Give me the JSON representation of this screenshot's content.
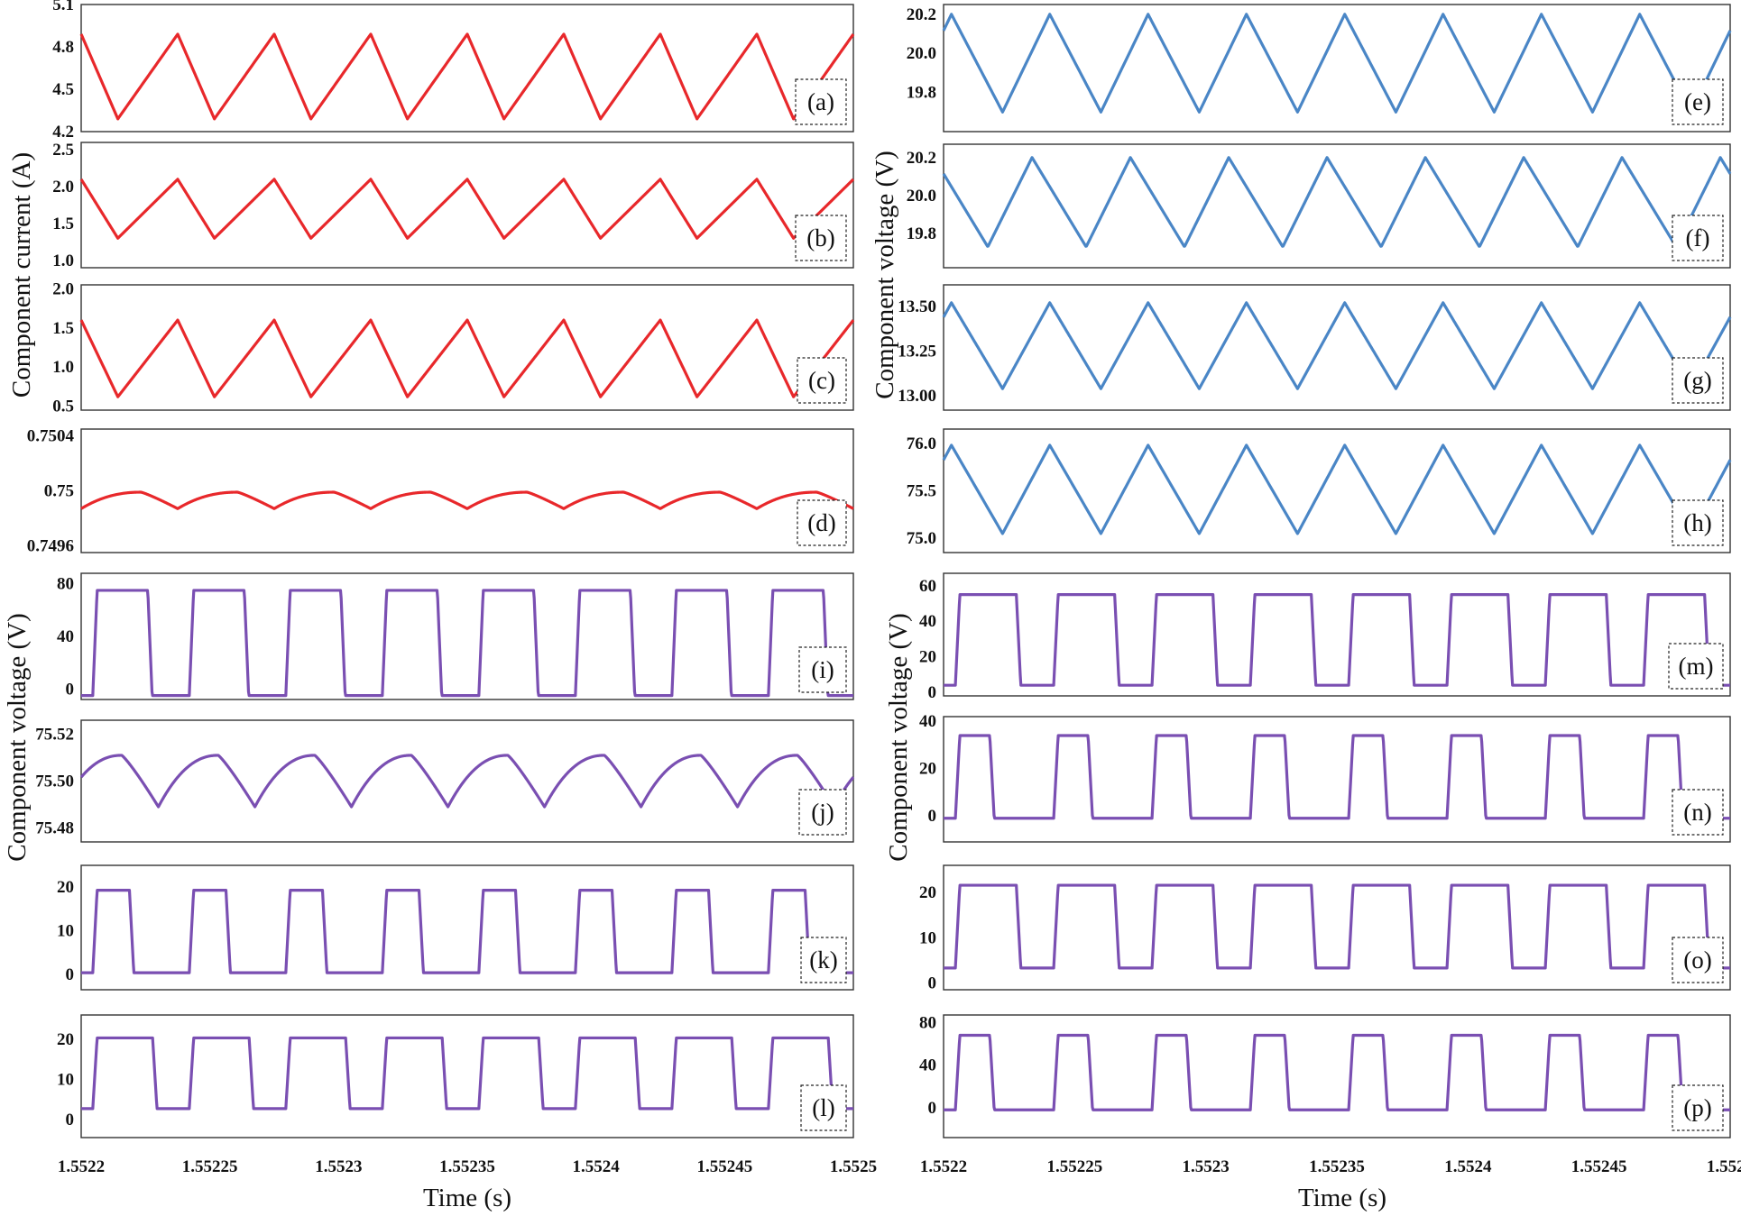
{
  "colors": {
    "current": "#e8282b",
    "voltage_blue": "#4a86c6",
    "voltage_purple": "#7a4fb2"
  },
  "axis_labels": {
    "left_top": "Component current (A)",
    "right_top": "Component voltage (V)",
    "left_bottom": "Component voltage (V)",
    "right_bottom": "Component voltage (V)",
    "x_left": "Time (s)",
    "x_right": "Time (s)"
  },
  "x_axis": {
    "range": [
      1.5522,
      1.5525
    ],
    "ticks": [
      1.5522,
      1.55225,
      1.5523,
      1.55235,
      1.5524,
      1.55245,
      1.5525
    ],
    "tick_labels": [
      "1.5522",
      "1.55225",
      "1.5523",
      "1.55235",
      "1.5524",
      "1.55245",
      "1.5525"
    ]
  },
  "chart_data": [
    {
      "panel": "(a)",
      "type": "line",
      "waveform": "triangle",
      "color": "current",
      "ylabel": "Component current (A)",
      "ylim": [
        4.2,
        5.1
      ],
      "yticks": [
        4.2,
        4.5,
        4.8,
        5.1
      ],
      "ytick_labels": [
        "4.2",
        "4.5",
        "4.8",
        "5.1"
      ],
      "min": 4.29,
      "max": 4.89,
      "start_phase": 0.0,
      "duty": 0.38
    },
    {
      "panel": "(b)",
      "type": "line",
      "waveform": "triangle",
      "color": "current",
      "ylabel": "Component current (A)",
      "ylim": [
        0.9,
        2.6
      ],
      "yticks": [
        1.0,
        1.5,
        2.0,
        2.5
      ],
      "ytick_labels": [
        "1.0",
        "1.5",
        "2.0",
        "2.5"
      ],
      "min": 1.3,
      "max": 2.1,
      "start_phase": 0.0,
      "duty": 0.38
    },
    {
      "panel": "(c)",
      "type": "line",
      "waveform": "triangle",
      "color": "current",
      "ylabel": "Component current (A)",
      "ylim": [
        0.45,
        2.05
      ],
      "yticks": [
        0.5,
        1.0,
        1.5,
        2.0
      ],
      "ytick_labels": [
        "0.5",
        "1.0",
        "1.5",
        "2.0"
      ],
      "min": 0.62,
      "max": 1.6,
      "start_phase": 0.0,
      "duty": 0.38
    },
    {
      "panel": "(d)",
      "type": "line",
      "waveform": "curved_triangle",
      "color": "current",
      "ylabel": "Component current (A)",
      "ylim": [
        0.74955,
        0.75045
      ],
      "yticks": [
        0.7496,
        0.75,
        0.7504
      ],
      "ytick_labels": [
        "0.7496",
        "0.75",
        "0.7504"
      ],
      "min": 0.74987,
      "max": 0.74999,
      "start_phase": 0.0,
      "duty": 0.62
    },
    {
      "panel": "(e)",
      "type": "line",
      "waveform": "triangle",
      "color": "voltage_blue",
      "ylabel": "Component voltage (V)",
      "ylim": [
        19.6,
        20.25
      ],
      "yticks": [
        19.8,
        20.0,
        20.2
      ],
      "ytick_labels": [
        "19.8",
        "20.0",
        "20.2"
      ],
      "min": 19.7,
      "max": 20.2,
      "start_phase": 0.92,
      "duty": 0.52
    },
    {
      "panel": "(f)",
      "type": "line",
      "waveform": "triangle",
      "color": "voltage_blue",
      "ylabel": "Component voltage (V)",
      "ylim": [
        19.62,
        20.27
      ],
      "yticks": [
        19.8,
        20.0,
        20.2
      ],
      "ytick_labels": [
        "19.8",
        "20.0",
        "20.2"
      ],
      "min": 19.73,
      "max": 20.2,
      "start_phase": 0.1,
      "duty": 0.55
    },
    {
      "panel": "(g)",
      "type": "line",
      "waveform": "triangle",
      "color": "voltage_blue",
      "ylabel": "Component voltage (V)",
      "ylim": [
        12.92,
        13.62
      ],
      "yticks": [
        13.0,
        13.25,
        13.5
      ],
      "ytick_labels": [
        "13.00",
        "13.25",
        "13.50"
      ],
      "min": 13.04,
      "max": 13.52,
      "start_phase": 0.92,
      "duty": 0.52
    },
    {
      "panel": "(h)",
      "type": "line",
      "waveform": "triangle",
      "color": "voltage_blue",
      "ylabel": "Component voltage (V)",
      "ylim": [
        74.85,
        76.15
      ],
      "yticks": [
        75.0,
        75.5,
        76.0
      ],
      "ytick_labels": [
        "75.0",
        "75.5",
        "76.0"
      ],
      "min": 75.05,
      "max": 75.98,
      "start_phase": 0.92,
      "duty": 0.52
    },
    {
      "panel": "(i)",
      "type": "line",
      "waveform": "pulse",
      "color": "voltage_purple",
      "ylabel": "Component voltage (V)",
      "ylim": [
        -8,
        88
      ],
      "yticks": [
        0,
        40,
        80
      ],
      "ytick_labels": [
        "0",
        "40",
        "80"
      ],
      "low": -5,
      "high": 75,
      "start_phase": 0.88,
      "duty": 0.57
    },
    {
      "panel": "(j)",
      "type": "line",
      "waveform": "curved_triangle",
      "color": "voltage_purple",
      "ylabel": "Component voltage (V)",
      "ylim": [
        75.474,
        75.526
      ],
      "yticks": [
        75.48,
        75.5,
        75.52
      ],
      "ytick_labels": [
        "75.48",
        "75.50",
        "75.52"
      ],
      "min": 75.489,
      "max": 75.511,
      "start_phase": 0.2,
      "duty": 0.62
    },
    {
      "panel": "(k)",
      "type": "line",
      "waveform": "pulse",
      "color": "voltage_purple",
      "ylabel": "Component voltage (V)",
      "ylim": [
        -3.5,
        25
      ],
      "yticks": [
        0,
        10,
        20
      ],
      "ytick_labels": [
        "0",
        "10",
        "20"
      ],
      "low": 0.4,
      "high": 19.3,
      "start_phase": 0.88,
      "duty": 0.38
    },
    {
      "panel": "(l)",
      "type": "line",
      "waveform": "pulse",
      "color": "voltage_purple",
      "ylabel": "Component voltage (V)",
      "ylim": [
        -4.5,
        26
      ],
      "yticks": [
        0,
        10,
        20
      ],
      "ytick_labels": [
        "0",
        "10",
        "20"
      ],
      "low": 2.7,
      "high": 20.3,
      "start_phase": 0.88,
      "duty": 0.62
    },
    {
      "panel": "(m)",
      "type": "line",
      "waveform": "pulse",
      "color": "voltage_purple",
      "ylabel": "Component voltage (V)",
      "ylim": [
        -2,
        67
      ],
      "yticks": [
        0,
        20,
        40,
        60
      ],
      "ytick_labels": [
        "0",
        "20",
        "40",
        "60"
      ],
      "low": 4,
      "high": 55,
      "start_phase": 0.88,
      "duty": 0.62
    },
    {
      "panel": "(n)",
      "type": "line",
      "waveform": "pulse",
      "color": "voltage_purple",
      "ylabel": "Component voltage (V)",
      "ylim": [
        -11,
        42
      ],
      "yticks": [
        0,
        20,
        40
      ],
      "ytick_labels": [
        "0",
        "20",
        "40"
      ],
      "low": -1,
      "high": 34,
      "start_phase": 0.88,
      "duty": 0.35
    },
    {
      "panel": "(o)",
      "type": "line",
      "waveform": "pulse",
      "color": "voltage_purple",
      "ylabel": "Component voltage (V)",
      "ylim": [
        -1.5,
        26
      ],
      "yticks": [
        0,
        10,
        20
      ],
      "ytick_labels": [
        "0",
        "10",
        "20"
      ],
      "low": 3.3,
      "high": 21.6,
      "start_phase": 0.88,
      "duty": 0.62
    },
    {
      "panel": "(p)",
      "type": "line",
      "waveform": "pulse",
      "color": "voltage_purple",
      "ylabel": "Component voltage (V)",
      "ylim": [
        -28,
        87
      ],
      "yticks": [
        0,
        40,
        80
      ],
      "ytick_labels": [
        "0",
        "40",
        "80"
      ],
      "low": -2,
      "high": 68,
      "start_phase": 0.88,
      "duty": 0.35
    }
  ]
}
